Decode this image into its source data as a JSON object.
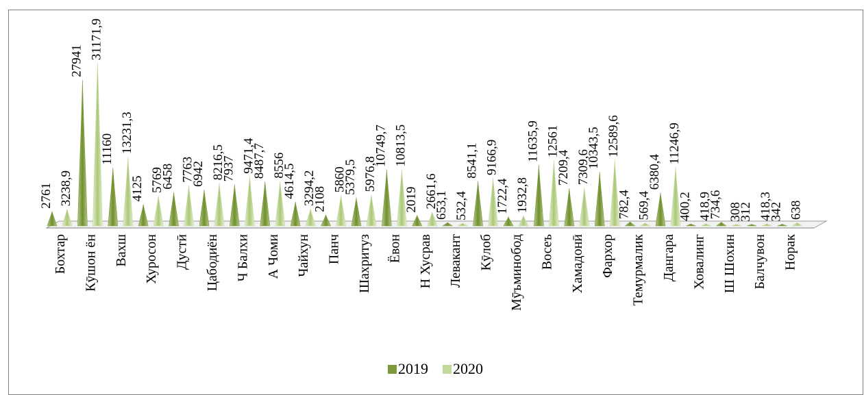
{
  "chart_data": {
    "type": "bar",
    "title": "",
    "xlabel": "",
    "ylabel": "",
    "categories": [
      "Бохтар",
      "Кӯшон ён",
      "Вахш",
      "Хуросон",
      "Дустӣ",
      "Цабодиён",
      "Ч Балхи",
      "А Чоми",
      "Чайхун",
      "Панч",
      "Шахритуз",
      "Ёвон",
      "Н Хусрав",
      "Левакант",
      "Кӯлоб",
      "Мӯъминобод",
      "Восеъ",
      "Хамадонӣ",
      "Фархор",
      "Темурмалик",
      "Дангара",
      "Ховалинг",
      "Ш Шохин",
      "Балчувон",
      "Норак"
    ],
    "series": [
      {
        "name": "2019",
        "color": "#7c9a3c",
        "values": [
          2761,
          27941,
          11160,
          4125,
          6458,
          6942,
          7937,
          8487.7,
          4614.5,
          2108,
          5379.5,
          10749.7,
          2019,
          653.1,
          8541.1,
          1722.4,
          11635.9,
          7209.4,
          10343.5,
          782.4,
          6380.4,
          400.2,
          734.6,
          312,
          342
        ],
        "labels": [
          "2761",
          "27941",
          "11160",
          "4125",
          "6458",
          "6942",
          "7937",
          "8487,7",
          "4614,5",
          "2108",
          "5379,5",
          "10749,7",
          "2019",
          "653,1",
          "8541,1",
          "1722,4",
          "11635,9",
          "7209,4",
          "10343,5",
          "782,4",
          "6380,4",
          "400,2",
          "734,6",
          "312",
          "342"
        ]
      },
      {
        "name": "2020",
        "color": "#c3d89b",
        "values": [
          3238.9,
          31171.9,
          13231.3,
          5769,
          7763,
          8216.5,
          9471.4,
          8556,
          3294.2,
          5860,
          5976.8,
          10813.5,
          2661.6,
          532.4,
          9166.9,
          1932.8,
          12561,
          7309.6,
          12589.6,
          569.4,
          11246.9,
          418.9,
          308,
          418.3,
          638
        ],
        "labels": [
          "3238,9",
          "31171,9",
          "13231,3",
          "5769",
          "7763",
          "8216,5",
          "9471,4",
          "8556",
          "3294,2",
          "5860",
          "5976,8",
          "10813,5",
          "2661,6",
          "532,4",
          "9166,9",
          "1932,8",
          "12561",
          "7309,6",
          "12589,6",
          "569,4",
          "11246,9",
          "418,9",
          "308",
          "418,3",
          "638"
        ]
      }
    ],
    "ylim": [
      0,
      31171.9
    ],
    "grid": false,
    "legend_position": "bottom-center"
  }
}
